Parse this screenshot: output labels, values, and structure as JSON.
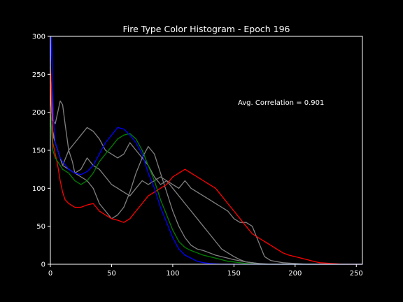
{
  "chart_data": {
    "type": "line",
    "title": "Fire Type Color Histogram - Epoch 196",
    "xlabel": "",
    "ylabel": "",
    "xlim": [
      0,
      255
    ],
    "ylim": [
      0,
      300
    ],
    "xticks": [
      0,
      50,
      100,
      150,
      200,
      250
    ],
    "yticks": [
      0,
      50,
      100,
      150,
      200,
      250,
      300
    ],
    "grid": false,
    "annotation": "Avg. Correlation = 0.901",
    "colors": {
      "background": "#000000",
      "axes": "#ffffff",
      "red": "#ff0000",
      "green": "#008000",
      "blue": "#0000ff",
      "gray": "#808080"
    },
    "series": [
      {
        "color": "gray",
        "x": [
          0,
          2,
          4,
          6,
          8,
          10,
          12,
          15,
          18,
          20,
          25,
          30,
          35,
          40,
          45,
          50,
          55,
          60,
          65,
          70,
          75,
          80,
          85,
          90,
          95,
          100,
          105,
          110,
          115,
          120,
          125,
          130,
          135,
          140,
          145,
          150,
          155,
          160,
          165,
          170,
          175,
          180,
          190,
          200,
          210,
          220,
          230,
          240,
          255
        ],
        "y": [
          260,
          190,
          185,
          200,
          215,
          210,
          185,
          150,
          135,
          120,
          125,
          140,
          130,
          125,
          115,
          105,
          100,
          95,
          90,
          100,
          110,
          105,
          110,
          115,
          110,
          105,
          100,
          110,
          100,
          95,
          90,
          85,
          80,
          75,
          70,
          60,
          55,
          55,
          50,
          30,
          10,
          5,
          2,
          1,
          0,
          0,
          0,
          0,
          0
        ]
      },
      {
        "color": "gray",
        "x": [
          0,
          2,
          4,
          6,
          8,
          10,
          15,
          20,
          25,
          30,
          35,
          40,
          45,
          50,
          55,
          60,
          65,
          70,
          75,
          80,
          85,
          90,
          95,
          100,
          105,
          110,
          115,
          120,
          125,
          130,
          135,
          140,
          145,
          150,
          155,
          160,
          165,
          170,
          175,
          180,
          190,
          200,
          220,
          255
        ],
        "y": [
          240,
          170,
          160,
          150,
          140,
          130,
          150,
          160,
          170,
          180,
          175,
          165,
          150,
          145,
          140,
          145,
          160,
          150,
          140,
          130,
          115,
          105,
          110,
          100,
          90,
          80,
          70,
          60,
          50,
          40,
          30,
          20,
          15,
          10,
          6,
          3,
          2,
          1,
          0,
          0,
          0,
          0,
          0,
          0
        ]
      },
      {
        "color": "gray",
        "x": [
          0,
          2,
          4,
          6,
          8,
          10,
          15,
          20,
          25,
          30,
          35,
          40,
          45,
          50,
          55,
          60,
          65,
          70,
          75,
          80,
          85,
          90,
          95,
          100,
          105,
          110,
          115,
          120,
          125,
          130,
          135,
          140,
          145,
          150,
          160,
          170,
          180,
          200,
          255
        ],
        "y": [
          230,
          175,
          160,
          150,
          140,
          130,
          125,
          120,
          115,
          110,
          100,
          80,
          70,
          60,
          65,
          75,
          95,
          120,
          140,
          155,
          145,
          120,
          95,
          70,
          50,
          35,
          25,
          20,
          18,
          15,
          12,
          10,
          8,
          6,
          3,
          1,
          0,
          0,
          0
        ]
      },
      {
        "color": "red",
        "x": [
          0,
          2,
          4,
          6,
          8,
          10,
          12,
          15,
          20,
          25,
          30,
          35,
          40,
          45,
          50,
          55,
          60,
          65,
          70,
          75,
          80,
          85,
          90,
          95,
          100,
          105,
          110,
          115,
          120,
          125,
          130,
          135,
          140,
          145,
          150,
          155,
          160,
          165,
          170,
          175,
          180,
          185,
          190,
          195,
          200,
          205,
          210,
          215,
          220,
          230,
          240,
          255
        ],
        "y": [
          270,
          160,
          145,
          130,
          110,
          95,
          85,
          80,
          75,
          75,
          78,
          80,
          70,
          65,
          60,
          58,
          55,
          60,
          70,
          80,
          90,
          95,
          100,
          105,
          115,
          120,
          125,
          120,
          115,
          110,
          105,
          100,
          90,
          80,
          70,
          60,
          50,
          40,
          35,
          30,
          25,
          20,
          15,
          12,
          10,
          8,
          6,
          4,
          2,
          1,
          0,
          0
        ]
      },
      {
        "color": "green",
        "x": [
          0,
          2,
          4,
          6,
          8,
          10,
          15,
          20,
          25,
          30,
          35,
          40,
          45,
          50,
          55,
          60,
          65,
          70,
          75,
          80,
          85,
          90,
          95,
          100,
          105,
          110,
          115,
          120,
          125,
          130,
          135,
          140,
          145,
          150,
          160,
          170,
          180,
          255
        ],
        "y": [
          200,
          150,
          140,
          135,
          130,
          125,
          120,
          110,
          105,
          110,
          120,
          135,
          145,
          155,
          165,
          170,
          172,
          165,
          150,
          130,
          110,
          85,
          65,
          45,
          30,
          22,
          18,
          15,
          12,
          10,
          8,
          6,
          4,
          3,
          1,
          0,
          0,
          0
        ]
      },
      {
        "color": "blue",
        "x": [
          0,
          1,
          2,
          3,
          4,
          6,
          8,
          10,
          15,
          20,
          25,
          30,
          35,
          40,
          45,
          50,
          55,
          60,
          65,
          70,
          75,
          80,
          85,
          90,
          95,
          100,
          105,
          110,
          115,
          120,
          125,
          130,
          140,
          150,
          255
        ],
        "y": [
          250,
          300,
          230,
          180,
          160,
          150,
          140,
          135,
          125,
          120,
          118,
          122,
          130,
          145,
          160,
          170,
          180,
          178,
          170,
          160,
          145,
          120,
          100,
          75,
          55,
          35,
          20,
          12,
          8,
          4,
          2,
          1,
          0,
          0,
          0
        ]
      }
    ]
  }
}
